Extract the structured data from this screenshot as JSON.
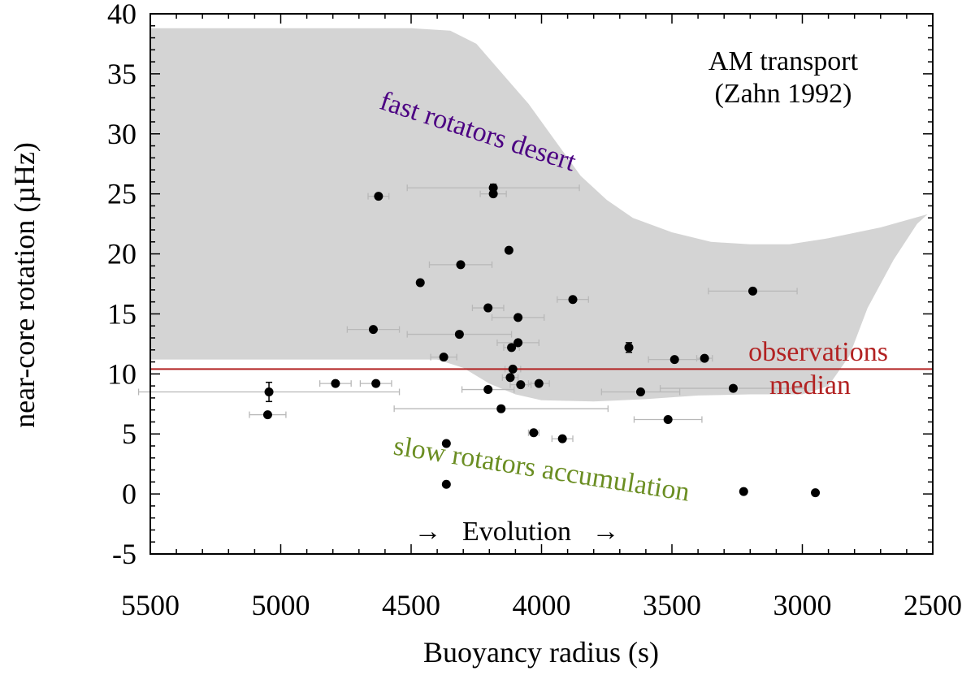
{
  "chart_data": {
    "type": "scatter",
    "xlabel": "Buoyancy radius (s)",
    "ylabel": "near-core rotation (µHz)",
    "xlim": [
      5500,
      2500
    ],
    "ylim": [
      -5,
      40
    ],
    "x_ticks": [
      5500,
      5000,
      4500,
      4000,
      3500,
      3000,
      2500
    ],
    "y_ticks": [
      -5,
      0,
      5,
      10,
      15,
      20,
      25,
      30,
      35,
      40
    ],
    "x_tick_labels": [
      "5500",
      "5000",
      "4500",
      "4000",
      "3500",
      "3000",
      "2500"
    ],
    "y_tick_labels": [
      "-5",
      "0",
      "5",
      "10",
      "15",
      "20",
      "25",
      "30",
      "35",
      "40"
    ],
    "colors": {
      "region": "#d4d4d4",
      "median_line": "#b22222",
      "points": "#000000",
      "errorbars": "#b8b8b8",
      "desert_text": "#4b0082",
      "accum_text": "#6b8e23",
      "median_text": "#b22222"
    },
    "median_value": 10.4,
    "region": {
      "name": "fast rotators desert",
      "upper": [
        [
          5500,
          38.8
        ],
        [
          4500,
          38.8
        ],
        [
          4350,
          38.6
        ],
        [
          4250,
          37.5
        ],
        [
          4150,
          35
        ],
        [
          4050,
          32.5
        ],
        [
          3950,
          29.5
        ],
        [
          3850,
          26.5
        ],
        [
          3750,
          24.5
        ],
        [
          3650,
          23
        ],
        [
          3500,
          21.8
        ],
        [
          3350,
          21
        ],
        [
          3200,
          20.8
        ],
        [
          3050,
          20.8
        ],
        [
          2900,
          21.3
        ],
        [
          2700,
          22.2
        ],
        [
          2520,
          23.3
        ]
      ],
      "lower": [
        [
          5500,
          11.2
        ],
        [
          4400,
          11.2
        ],
        [
          4300,
          10.5
        ],
        [
          4200,
          9.2
        ],
        [
          4100,
          8.3
        ],
        [
          4000,
          7.8
        ],
        [
          3800,
          7.7
        ],
        [
          3600,
          7.9
        ],
        [
          3400,
          8.2
        ],
        [
          3200,
          8.3
        ],
        [
          3000,
          8.3
        ],
        [
          2900,
          9
        ],
        [
          2820,
          11.5
        ],
        [
          2750,
          15.5
        ],
        [
          2650,
          19.5
        ],
        [
          2560,
          22.5
        ]
      ]
    },
    "points": [
      {
        "x": 4625,
        "y": 24.8,
        "xerr": 40,
        "yerr": 0
      },
      {
        "x": 4185,
        "y": 25.5,
        "xerr": 330,
        "yerr": 0.3
      },
      {
        "x": 4185,
        "y": 25.0,
        "xerr": 50,
        "yerr": 0
      },
      {
        "x": 4125,
        "y": 20.3,
        "xerr": 0,
        "yerr": 0
      },
      {
        "x": 4310,
        "y": 19.1,
        "xerr": 120,
        "yerr": 0
      },
      {
        "x": 4465,
        "y": 17.6,
        "xerr": 0,
        "yerr": 0
      },
      {
        "x": 3880,
        "y": 16.2,
        "xerr": 60,
        "yerr": 0
      },
      {
        "x": 3190,
        "y": 16.9,
        "xerr": 170,
        "yerr": 0
      },
      {
        "x": 4205,
        "y": 15.5,
        "xerr": 60,
        "yerr": 0
      },
      {
        "x": 4090,
        "y": 14.7,
        "xerr": 100,
        "yerr": 0
      },
      {
        "x": 4645,
        "y": 13.7,
        "xerr": 100,
        "yerr": 0
      },
      {
        "x": 4315,
        "y": 13.3,
        "xerr": 200,
        "yerr": 0
      },
      {
        "x": 4090,
        "y": 12.6,
        "xerr": 80,
        "yerr": 0
      },
      {
        "x": 4115,
        "y": 12.2,
        "xerr": 30,
        "yerr": 0
      },
      {
        "x": 3665,
        "y": 12.2,
        "xerr": 0,
        "yerr": 0.4
      },
      {
        "x": 4375,
        "y": 11.4,
        "xerr": 50,
        "yerr": 0
      },
      {
        "x": 3490,
        "y": 11.2,
        "xerr": 100,
        "yerr": 0
      },
      {
        "x": 3375,
        "y": 11.3,
        "xerr": 30,
        "yerr": 0
      },
      {
        "x": 4110,
        "y": 10.4,
        "xerr": 30,
        "yerr": 0
      },
      {
        "x": 4120,
        "y": 9.7,
        "xerr": 30,
        "yerr": 0
      },
      {
        "x": 4080,
        "y": 9.1,
        "xerr": 40,
        "yerr": 0
      },
      {
        "x": 4010,
        "y": 9.2,
        "xerr": 40,
        "yerr": 0
      },
      {
        "x": 4790,
        "y": 9.2,
        "xerr": 60,
        "yerr": 0
      },
      {
        "x": 4635,
        "y": 9.2,
        "xerr": 60,
        "yerr": 0
      },
      {
        "x": 5045,
        "y": 8.5,
        "xerr": 500,
        "yerr": 0.8
      },
      {
        "x": 4205,
        "y": 8.7,
        "xerr": 100,
        "yerr": 0
      },
      {
        "x": 3620,
        "y": 8.5,
        "xerr": 150,
        "yerr": 0
      },
      {
        "x": 3265,
        "y": 8.8,
        "xerr": 280,
        "yerr": 0
      },
      {
        "x": 4155,
        "y": 7.1,
        "xerr": 410,
        "yerr": 0
      },
      {
        "x": 5050,
        "y": 6.6,
        "xerr": 70,
        "yerr": 0
      },
      {
        "x": 3515,
        "y": 6.2,
        "xerr": 130,
        "yerr": 0
      },
      {
        "x": 4030,
        "y": 5.1,
        "xerr": 20,
        "yerr": 0
      },
      {
        "x": 3920,
        "y": 4.6,
        "xerr": 40,
        "yerr": 0
      },
      {
        "x": 4365,
        "y": 4.2,
        "xerr": 0,
        "yerr": 0
      },
      {
        "x": 4365,
        "y": 0.8,
        "xerr": 0,
        "yerr": 0
      },
      {
        "x": 3225,
        "y": 0.2,
        "xerr": 0,
        "yerr": 0
      },
      {
        "x": 2950,
        "y": 0.1,
        "xerr": 0,
        "yerr": 0
      }
    ],
    "annotations": {
      "model_line1": "AM transport",
      "model_line2": "(Zahn 1992)",
      "desert": "fast rotators desert",
      "accumulation": "slow rotators accumulation",
      "median_line1": "observations",
      "median_line2": "median",
      "evolution": "→   Evolution   →"
    }
  }
}
